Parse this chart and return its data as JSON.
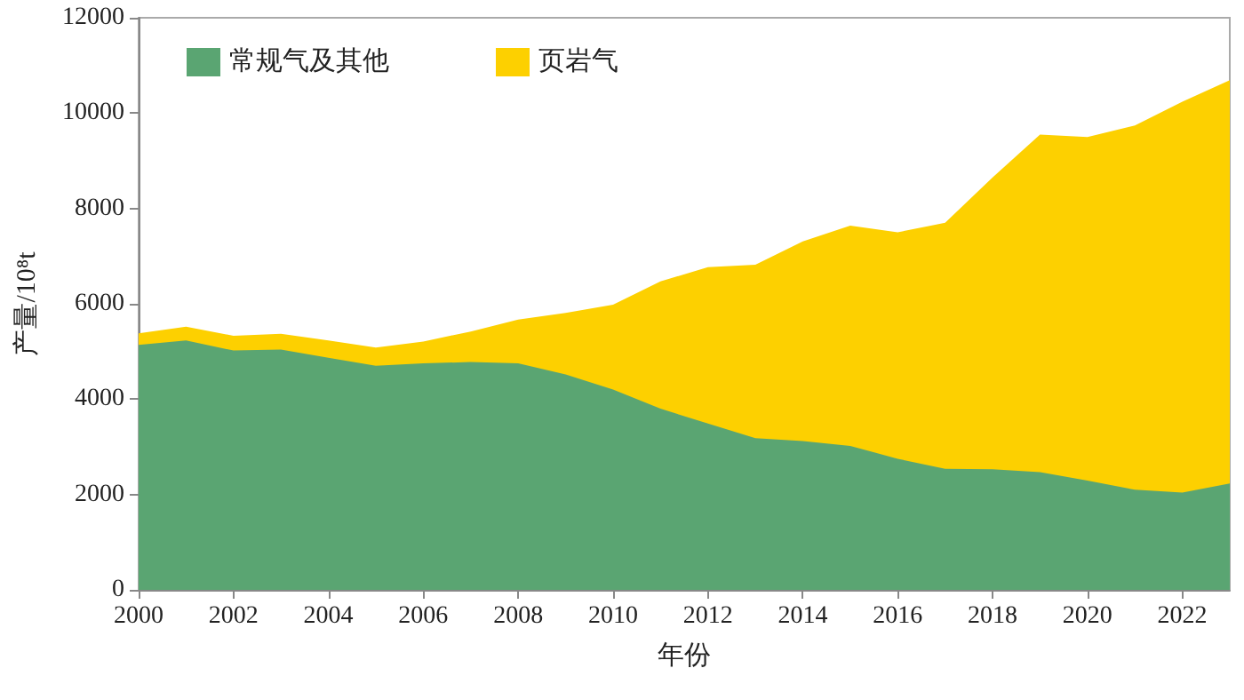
{
  "chart_data": {
    "type": "area",
    "stacked": true,
    "xlabel": "年份",
    "ylabel": "产量/10⁸t",
    "x": [
      2000,
      2001,
      2002,
      2003,
      2004,
      2005,
      2006,
      2007,
      2008,
      2009,
      2010,
      2011,
      2012,
      2013,
      2014,
      2015,
      2016,
      2017,
      2018,
      2019,
      2020,
      2021,
      2022,
      2023
    ],
    "series": [
      {
        "name": "常规气及其他",
        "color": "#5aa572",
        "values": [
          5140,
          5230,
          5020,
          5040,
          4870,
          4700,
          4750,
          4780,
          4750,
          4520,
          4200,
          3800,
          3490,
          3180,
          3120,
          3020,
          2750,
          2540,
          2530,
          2470,
          2290,
          2100,
          2040,
          2230
        ]
      },
      {
        "name": "页岩气",
        "color": "#fdd000",
        "values": [
          240,
          290,
          310,
          330,
          360,
          380,
          460,
          640,
          920,
          1290,
          1780,
          2670,
          3280,
          3640,
          4190,
          4620,
          4750,
          5160,
          6120,
          7080,
          7210,
          7640,
          8200,
          8460
        ]
      }
    ],
    "xlim": [
      2000,
      2023
    ],
    "xticks": [
      2000,
      2002,
      2004,
      2006,
      2008,
      2010,
      2012,
      2014,
      2016,
      2018,
      2020,
      2022
    ],
    "ylim": [
      0,
      12000
    ],
    "yticks": [
      0,
      2000,
      4000,
      6000,
      8000,
      10000,
      12000
    ],
    "grid": false,
    "legend": "top left"
  }
}
